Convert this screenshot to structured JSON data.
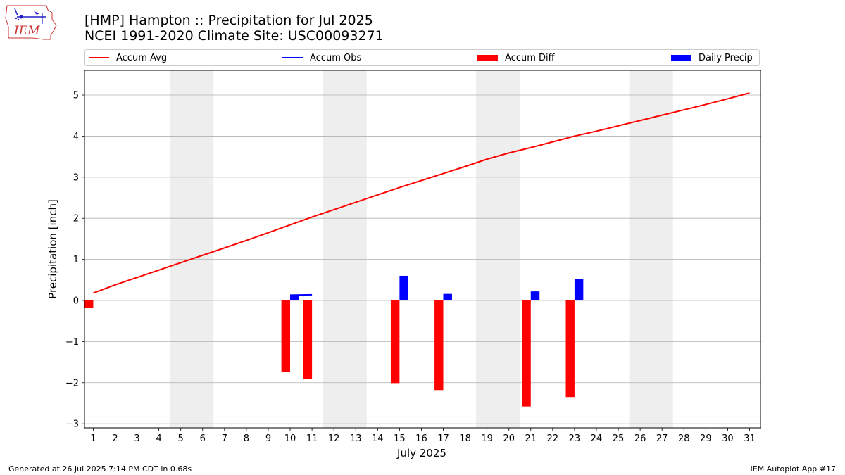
{
  "header": {
    "title_line1": "[HMP] Hampton :: Precipitation for Jul 2025",
    "title_line2": "NCEI 1991-2020 Climate Site: USC00093271",
    "logo_text": "IEM"
  },
  "footer": {
    "left": "Generated at 26 Jul 2025 7:14 PM CDT in 0.68s",
    "right": "IEM Autoplot App #17"
  },
  "chart_data": {
    "type": "bar",
    "xlabel": "July 2025",
    "ylabel": "Precipitation [inch]",
    "xlim": [
      0.6,
      31.5
    ],
    "ylim": [
      -3.1,
      5.6
    ],
    "x_ticks": [
      1,
      2,
      3,
      4,
      5,
      6,
      7,
      8,
      9,
      10,
      11,
      12,
      13,
      14,
      15,
      16,
      17,
      18,
      19,
      20,
      21,
      22,
      23,
      24,
      25,
      26,
      27,
      28,
      29,
      30,
      31
    ],
    "y_ticks": [
      -3,
      -2,
      -1,
      0,
      1,
      2,
      3,
      4,
      5
    ],
    "y_tick_labels": [
      "−3",
      "−2",
      "−1",
      "0",
      "1",
      "2",
      "3",
      "4",
      "5"
    ],
    "grid": "horizontal",
    "legend": {
      "placement": "top",
      "entries": [
        {
          "name": "Accum Avg",
          "kind": "line",
          "color": "#ff0000"
        },
        {
          "name": "Accum Obs",
          "kind": "line",
          "color": "#0000ff"
        },
        {
          "name": "Accum Diff",
          "kind": "bar",
          "color": "#ff0000"
        },
        {
          "name": "Daily Precip",
          "kind": "bar",
          "color": "#0000ff"
        }
      ]
    },
    "weekend_bands": [
      [
        4.5,
        6.5
      ],
      [
        11.5,
        13.5
      ],
      [
        18.5,
        20.5
      ],
      [
        25.5,
        27.5
      ]
    ],
    "band_color": "#eeeeee",
    "series": [
      {
        "name": "Accum Avg",
        "type": "line",
        "color": "#ff0000",
        "x": [
          1,
          2,
          3,
          4,
          5,
          6,
          7,
          8,
          9,
          10,
          11,
          12,
          13,
          14,
          15,
          16,
          17,
          18,
          19,
          20,
          21,
          22,
          23,
          24,
          25,
          26,
          27,
          28,
          29,
          30,
          31
        ],
        "values": [
          0.18,
          0.38,
          0.56,
          0.74,
          0.92,
          1.1,
          1.28,
          1.46,
          1.65,
          1.84,
          2.03,
          2.21,
          2.39,
          2.57,
          2.75,
          2.92,
          3.09,
          3.26,
          3.44,
          3.59,
          3.72,
          3.86,
          4.0,
          4.12,
          4.25,
          4.38,
          4.51,
          4.64,
          4.77,
          4.91,
          5.05
        ]
      },
      {
        "name": "Accum Obs",
        "type": "line",
        "color": "#0000ff",
        "x": [
          10,
          11
        ],
        "values": [
          0.13,
          0.14
        ]
      },
      {
        "name": "Accum Diff",
        "type": "bar",
        "color": "#ff0000",
        "offset": -0.2,
        "x": [
          1,
          10,
          11,
          15,
          17,
          21,
          23
        ],
        "values": [
          -0.18,
          -1.74,
          -1.91,
          -2.01,
          -2.18,
          -2.58,
          -2.35
        ]
      },
      {
        "name": "Daily Precip",
        "type": "bar",
        "color": "#0000ff",
        "offset": 0.2,
        "x": [
          10,
          15,
          17,
          21,
          23
        ],
        "values": [
          0.13,
          0.6,
          0.16,
          0.22,
          0.52
        ]
      }
    ]
  }
}
